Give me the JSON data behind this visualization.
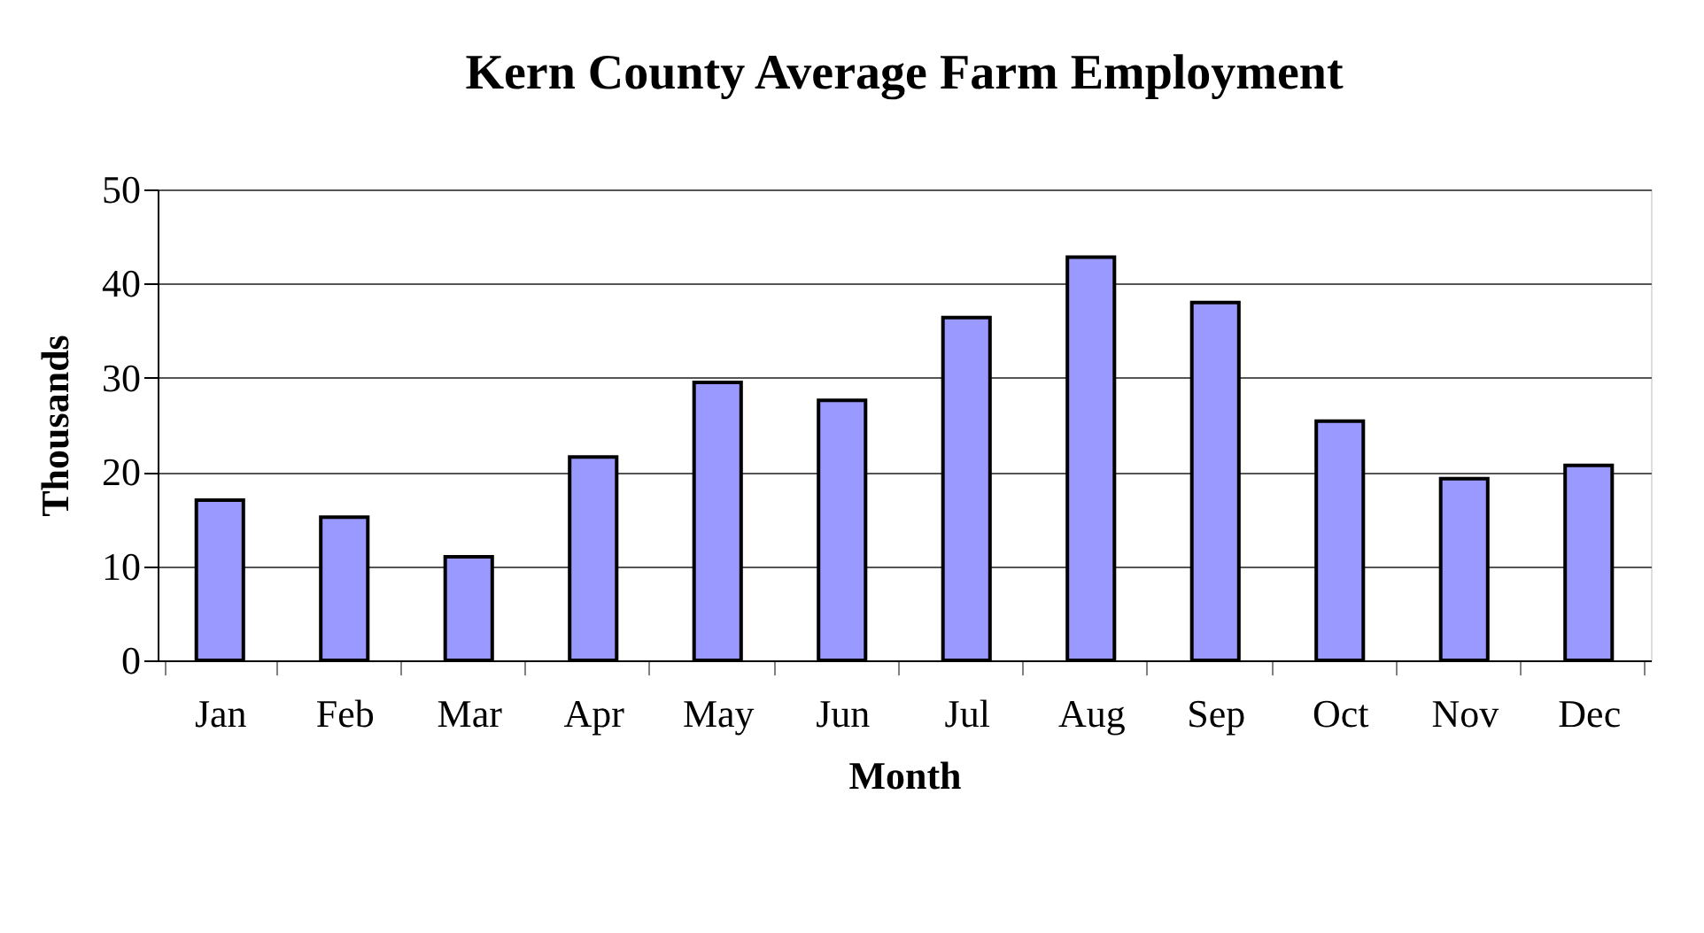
{
  "chart_data": {
    "type": "bar",
    "title": "Kern County Average Farm Employment",
    "xlabel": "Month",
    "ylabel": "Thousands",
    "categories": [
      "Jan",
      "Feb",
      "Mar",
      "Apr",
      "May",
      "Jun",
      "Jul",
      "Aug",
      "Sep",
      "Oct",
      "Nov",
      "Dec"
    ],
    "values": [
      17.0,
      15.2,
      11.0,
      21.6,
      29.5,
      27.6,
      36.4,
      42.8,
      38.0,
      25.4,
      19.3,
      20.7
    ],
    "color": "#9999ff",
    "ylim": [
      0,
      50
    ],
    "yticks": [
      0,
      10,
      20,
      30,
      40,
      50
    ],
    "grid": "y"
  }
}
